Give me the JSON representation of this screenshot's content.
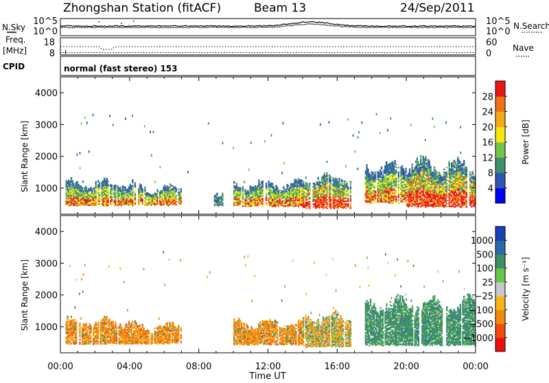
{
  "header": {
    "station": "Zhongshan Station (fitACF)",
    "beam": "Beam 13",
    "date": "24/Sep/2011"
  },
  "left_labels": {
    "nsky": "N.Sky",
    "freq_line1": "Freq.",
    "freq_line2": "[MHz]",
    "cpid": "CPID"
  },
  "right_labels": {
    "nsearch": "N.Search",
    "nave": "Nave"
  },
  "strip_ticks": {
    "noise_top": "10^5",
    "noise_bottom": "10^0",
    "freq_top": "18",
    "freq_bottom": "8",
    "nave_top": "60",
    "nave_bottom": "0"
  },
  "cpid_text": "normal (fast stereo) 153",
  "colors": {
    "power_scale": [
      "#0000ff",
      "#2f57b0",
      "#3f8f6a",
      "#74c44a",
      "#f6e610",
      "#f6a81a",
      "#ef7216",
      "#e91616"
    ],
    "velocity_scale": [
      "#ee1010",
      "#f04a10",
      "#f28a10",
      "#f6b41a",
      "#c8c8c8",
      "#64c84a",
      "#3c8f64",
      "#2e6aa8",
      "#1a3fb8"
    ],
    "trace": "#000000"
  },
  "chart_data": [
    {
      "type": "heatmap",
      "title": "",
      "xlabel": "Time UT",
      "ylabel": "Slant Range [km]",
      "xlim": [
        0,
        24
      ],
      "ylim": [
        180,
        4500
      ],
      "x_tick_labels": [
        "00:00",
        "04:00",
        "08:00",
        "12:00",
        "16:00",
        "20:00",
        "00:00"
      ],
      "y_tick_labels": [
        "1000",
        "2000",
        "3000",
        "4000"
      ],
      "y_ticks": [
        1000,
        2000,
        3000,
        4000
      ],
      "colorbar": {
        "label": "Power [dB]",
        "tick_labels": [
          "4",
          "8",
          "12",
          "16",
          "20",
          "24",
          "28"
        ],
        "ticks": [
          4,
          8,
          12,
          16,
          20,
          24,
          28
        ],
        "range": [
          0,
          32
        ]
      },
      "echo_regions": [
        {
          "t0": 0.3,
          "t1": 4.2,
          "r0": 420,
          "r1": 1150,
          "level": "moderate"
        },
        {
          "t0": 4.2,
          "t1": 7.0,
          "r0": 430,
          "r1": 1000,
          "level": "moderate"
        },
        {
          "t0": 8.8,
          "t1": 9.4,
          "r0": 420,
          "r1": 900,
          "level": "weak"
        },
        {
          "t0": 10.0,
          "t1": 14.0,
          "r0": 400,
          "r1": 1100,
          "level": "moderate"
        },
        {
          "t0": 14.0,
          "t1": 16.8,
          "r0": 330,
          "r1": 1300,
          "level": "strong"
        },
        {
          "t0": 17.6,
          "t1": 20.0,
          "r0": 500,
          "r1": 1650,
          "level": "moderate"
        },
        {
          "t0": 20.0,
          "t1": 24.0,
          "r0": 380,
          "r1": 1700,
          "level": "strong"
        }
      ]
    },
    {
      "type": "heatmap",
      "title": "",
      "xlabel": "Time UT",
      "ylabel": "Slant Range [km]",
      "xlim": [
        0,
        24
      ],
      "ylim": [
        180,
        4500
      ],
      "x_tick_labels": [
        "00:00",
        "04:00",
        "08:00",
        "12:00",
        "16:00",
        "20:00",
        "00:00"
      ],
      "y_tick_labels": [
        "1000",
        "2000",
        "3000",
        "4000"
      ],
      "y_ticks": [
        1000,
        2000,
        3000,
        4000
      ],
      "colorbar": {
        "label": "Velocity [m s⁻¹]",
        "tick_labels": [
          "1000",
          "500",
          "100",
          "25",
          "−25",
          "−100",
          "−500",
          "−1000"
        ]
      },
      "echo_regions": [
        {
          "t0": 0.3,
          "t1": 4.2,
          "r0": 420,
          "r1": 1150,
          "dominant": "negative"
        },
        {
          "t0": 4.2,
          "t1": 7.0,
          "r0": 430,
          "r1": 1000,
          "dominant": "negative"
        },
        {
          "t0": 10.0,
          "t1": 14.0,
          "r0": 400,
          "r1": 1100,
          "dominant": "negative"
        },
        {
          "t0": 14.0,
          "t1": 16.8,
          "r0": 330,
          "r1": 1300,
          "dominant": "mixed"
        },
        {
          "t0": 17.6,
          "t1": 24.0,
          "r0": 380,
          "r1": 1700,
          "dominant": "positive"
        }
      ]
    }
  ]
}
